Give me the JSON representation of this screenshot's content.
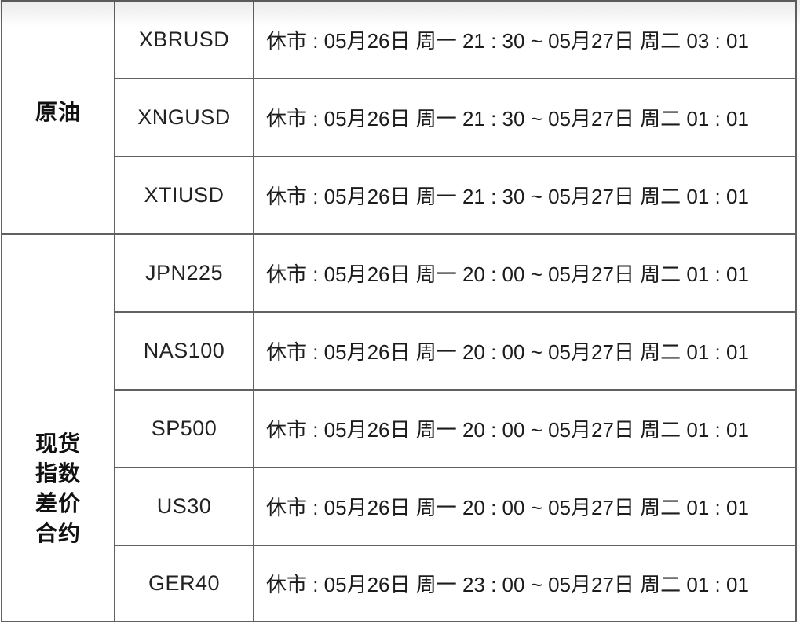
{
  "page": {
    "kind": "market-holiday-schedule-table",
    "language": "zh-CN"
  },
  "colors": {
    "background": "#ffffff",
    "border": "#616161",
    "text": "#1c1c1c"
  },
  "table": {
    "sections": [
      {
        "category": "原油",
        "rows": [
          {
            "symbol": "XBRUSD",
            "closure": "休市 : 05月26日 周一 21 : 30 ~ 05月27日 周二 03 : 01"
          },
          {
            "symbol": "XNGUSD",
            "closure": "休市 : 05月26日 周一 21 : 30 ~ 05月27日 周二 01 : 01"
          },
          {
            "symbol": "XTIUSD",
            "closure": "休市 : 05月26日 周一 21 : 30 ~ 05月27日 周二 01 : 01"
          }
        ]
      },
      {
        "category": "现货指数差价合约",
        "category_lines": [
          "现货",
          "指数",
          "差价",
          "合约"
        ],
        "rows": [
          {
            "symbol": "JPN225",
            "closure": "休市 : 05月26日 周一 20 : 00 ~ 05月27日 周二 01 : 01"
          },
          {
            "symbol": "NAS100",
            "closure": "休市 : 05月26日 周一 20 : 00 ~ 05月27日 周二 01 : 01"
          },
          {
            "symbol": "SP500",
            "closure": "休市 : 05月26日 周一 20 : 00 ~ 05月27日 周二 01 : 01"
          },
          {
            "symbol": "US30",
            "closure": "休市 : 05月26日 周一 20 : 00 ~ 05月27日 周二 01 : 01"
          },
          {
            "symbol": "GER40",
            "closure": "休市 : 05月26日 周一 23 : 00 ~ 05月27日 周二 01 : 01"
          }
        ]
      }
    ]
  }
}
